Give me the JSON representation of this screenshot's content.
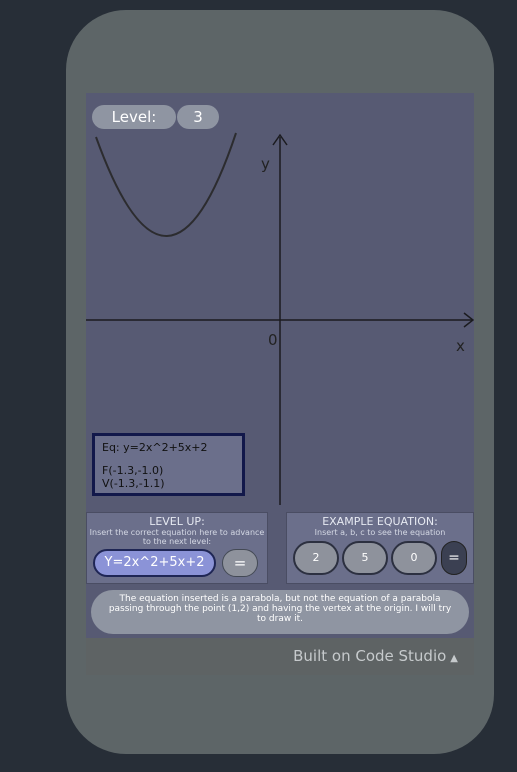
{
  "level": {
    "label": "Level:",
    "value": "3"
  },
  "graph": {
    "axis_y_label": "y",
    "axis_x_label": "x",
    "origin_label": "0"
  },
  "equation_box": {
    "equation": "Eq: y=2x^2+5x+2",
    "focus": "F(-1.3,-1.0)",
    "vertex": "V(-1.3,-1.1)"
  },
  "level_up": {
    "title": "LEVEL UP:",
    "subtitle": "Insert the correct equation here to advance to the next level:",
    "input_value": "Y=2x^2+5x+2",
    "button_label": "="
  },
  "example": {
    "title": "EXAMPLE EQUATION:",
    "subtitle": "Insert a, b, c to see the equation",
    "a": "2",
    "b": "5",
    "c": "0",
    "button_label": "="
  },
  "message": "The equation inserted is a parabola, but not the equation of a parabola passing through the point (1,2) and having the vertex at the origin. I will try to draw it.",
  "footer": {
    "label": "Built on Code Studio",
    "caret": "▲"
  }
}
